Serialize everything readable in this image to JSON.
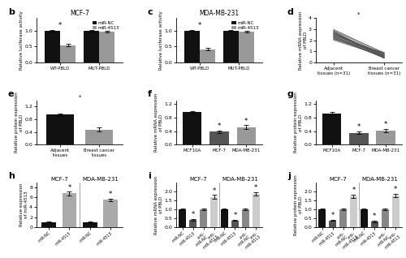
{
  "chart_data": [
    {
      "type": "bar",
      "title": "MCF-7",
      "categories": [
        "WT-PBLD",
        "MUT-PBLD"
      ],
      "series": [
        {
          "name": "miR-NC",
          "color": "#111111",
          "values": [
            1.0,
            1.0
          ],
          "errors": [
            0.03,
            0.03
          ]
        },
        {
          "name": "miR-4513",
          "color": "#999999",
          "values": [
            0.55,
            0.97
          ],
          "errors": [
            0.03,
            0.03
          ]
        }
      ],
      "y_label": "Relative luciferase activity",
      "ylim": [
        0,
        1.4
      ],
      "yticks": [
        {
          "value": 0,
          "label": "0.0"
        },
        0.5,
        {
          "value": 1,
          "label": "1.0"
        }
      ],
      "legend": "upper right",
      "annotations": [
        {
          "text": "b"
        },
        {
          "text": "*",
          "index": 0
        }
      ]
    },
    {
      "type": "bar",
      "title": "MDA-MB-231",
      "categories": [
        "WT-PBLD",
        "MUT-PBLD"
      ],
      "series": [
        {
          "name": "miR-NC",
          "color": "#111111",
          "values": [
            1.0,
            1.0
          ],
          "errors": [
            0.03,
            0.03
          ]
        },
        {
          "name": "miR-4513",
          "color": "#999999",
          "values": [
            0.42,
            0.97
          ],
          "errors": [
            0.03,
            0.03
          ]
        }
      ],
      "y_label": "Relative luciferase activity",
      "ylim": [
        0,
        1.4
      ],
      "yticks": [
        {
          "value": 0,
          "label": "0.0"
        },
        0.5,
        {
          "value": 1,
          "label": "1.0"
        }
      ],
      "legend": "upper right",
      "annotations": [
        {
          "text": "c"
        },
        {
          "text": "*",
          "index": 0
        }
      ]
    },
    {
      "type": "line",
      "categories": [
        "Adjacent\ntissues (n=31)",
        "Breast cancer\ntissues (n=31)"
      ],
      "color": "#555555",
      "series": [
        {
          "values": [
            2.2,
            0.5
          ]
        },
        {
          "values": [
            2.5,
            0.7
          ]
        },
        {
          "values": [
            2.8,
            0.4
          ]
        },
        {
          "values": [
            2.3,
            0.8
          ]
        },
        {
          "values": [
            2.6,
            0.6
          ]
        },
        {
          "values": [
            2.1,
            0.5
          ]
        },
        {
          "values": [
            2.9,
            0.9
          ]
        },
        {
          "values": [
            2.4,
            0.4
          ]
        },
        {
          "values": [
            2.7,
            0.7
          ]
        },
        {
          "values": [
            2.0,
            0.6
          ]
        },
        {
          "values": [
            3.0,
            0.8
          ]
        },
        {
          "values": [
            2.2,
            0.5
          ]
        },
        {
          "values": [
            2.5,
            0.6
          ]
        },
        {
          "values": [
            2.3,
            0.7
          ]
        },
        {
          "values": [
            2.7,
            0.4
          ]
        },
        {
          "values": [
            2.1,
            0.9
          ]
        },
        {
          "values": [
            2.8,
            0.5
          ]
        },
        {
          "values": [
            2.4,
            0.8
          ]
        },
        {
          "values": [
            2.6,
            0.6
          ]
        },
        {
          "values": [
            2.2,
            0.4
          ]
        },
        {
          "values": [
            2.9,
            0.7
          ]
        },
        {
          "values": [
            2.3,
            0.5
          ]
        },
        {
          "values": [
            2.5,
            0.8
          ]
        },
        {
          "values": [
            2.7,
            0.6
          ]
        },
        {
          "values": [
            2.1,
            0.9
          ]
        },
        {
          "values": [
            2.4,
            0.4
          ]
        },
        {
          "values": [
            2.6,
            0.7
          ]
        },
        {
          "values": [
            2.8,
            0.5
          ]
        },
        {
          "values": [
            2.3,
            0.6
          ]
        },
        {
          "values": [
            2.5,
            0.8
          ]
        },
        {
          "values": [
            2.7,
            0.4
          ]
        }
      ],
      "y_label": "Relative mRNA expression\nof PBLD",
      "ylim": [
        0,
        4.0
      ],
      "yticks": [
        0,
        1,
        2,
        3,
        4
      ],
      "annotations": [
        {
          "text": "d"
        },
        {
          "text": "*",
          "indices": [
            0,
            1
          ]
        }
      ]
    },
    {
      "type": "bar",
      "categories": [
        "Adjacent\ntissues",
        "Breast cancer\ntissues"
      ],
      "values": [
        0.95,
        0.48
      ],
      "colors": [
        "#111111",
        "#999999"
      ],
      "errors": [
        0.04,
        0.07
      ],
      "y_label": "Relative protein expression\nof PBLD",
      "ylim": [
        0,
        1.4
      ],
      "yticks": [
        {
          "value": 0,
          "label": "0.0"
        },
        0.4,
        0.8,
        1.2
      ],
      "annotations": [
        {
          "text": "e"
        },
        {
          "text": "*",
          "indices": [
            0,
            1
          ]
        }
      ]
    },
    {
      "type": "bar",
      "categories": [
        "MCF10A",
        "MCF-7",
        "MDA-MB-231"
      ],
      "values": [
        0.95,
        0.38,
        0.52
      ],
      "colors": [
        "#111111",
        "#555555",
        "#999999"
      ],
      "errors": [
        0.03,
        0.04,
        0.05
      ],
      "y_label": "Relative mRNA expression\nof PBLD",
      "ylim": [
        0,
        1.3
      ],
      "yticks": [
        {
          "value": 0,
          "label": "0.0"
        },
        0.4,
        0.8,
        1.2
      ],
      "annotations": [
        {
          "text": "f"
        },
        {
          "text": "*",
          "index": 1
        },
        {
          "text": "*",
          "index": 2
        }
      ]
    },
    {
      "type": "bar",
      "categories": [
        "MCF10A",
        "MCF-7",
        "MDA-MB-231"
      ],
      "values": [
        0.92,
        0.35,
        0.42
      ],
      "colors": [
        "#111111",
        "#555555",
        "#999999"
      ],
      "errors": [
        0.03,
        0.04,
        0.05
      ],
      "y_label": "Relative protein expression\nof PBLD",
      "ylim": [
        0,
        1.3
      ],
      "yticks": [
        {
          "value": 0,
          "label": "0.0"
        },
        0.4,
        0.8,
        1.2
      ],
      "annotations": [
        {
          "text": "g"
        },
        {
          "text": "*",
          "index": 1
        },
        {
          "text": "*",
          "index": 2
        }
      ]
    },
    {
      "type": "bar",
      "categories": [
        "miR-NC",
        "miR-4513",
        "miR-NC",
        "miR-4513"
      ],
      "values": [
        1.0,
        6.8,
        1.0,
        5.5
      ],
      "colors": [
        "#111111",
        "#aaaaaa",
        "#111111",
        "#aaaaaa"
      ],
      "errors": [
        0.08,
        0.35,
        0.08,
        0.3
      ],
      "y_label": "Relative expression\nof miR-4513",
      "ylim": [
        0,
        9
      ],
      "yticks": [
        0,
        2,
        4,
        6,
        8
      ],
      "annotations": [
        {
          "text": "h"
        },
        {
          "text": "MCF-7",
          "indices": [
            0,
            1
          ]
        },
        {
          "text": "MDA-MB-231",
          "indices": [
            2,
            3
          ]
        },
        {
          "text": "*",
          "index": 1
        },
        {
          "text": "*",
          "index": 3
        }
      ]
    },
    {
      "type": "bar",
      "categories": [
        "miR-NC",
        "miR-4513",
        "anti-\nmiR-NC",
        "anti-\nmiR-4513",
        "miR-NC",
        "miR-4513",
        "anti-\nmiR-NC",
        "anti-\nmiR-4513"
      ],
      "values": [
        1.0,
        0.42,
        1.0,
        1.7,
        1.0,
        0.38,
        1.0,
        1.85
      ],
      "colors": [
        "#111111",
        "#555555",
        "#888888",
        "#cccccc",
        "#111111",
        "#555555",
        "#888888",
        "#cccccc"
      ],
      "errors": [
        0.05,
        0.04,
        0.05,
        0.1,
        0.05,
        0.04,
        0.05,
        0.1
      ],
      "y_label": "Relative mRNA expression\nof PBLD",
      "ylim": [
        0,
        2.5
      ],
      "yticks": [
        {
          "value": 0,
          "label": "0.0"
        },
        0.5,
        {
          "value": 1,
          "label": "1.0"
        },
        1.5,
        {
          "value": 2,
          "label": "2.0"
        }
      ],
      "annotations": [
        {
          "text": "i"
        },
        {
          "text": "MCF-7",
          "indices": [
            0,
            1,
            2,
            3
          ]
        },
        {
          "text": "MDA-MB-231",
          "indices": [
            4,
            5,
            6,
            7
          ]
        },
        {
          "text": "*",
          "index": 1
        },
        {
          "text": "*",
          "index": 3
        },
        {
          "text": "*",
          "index": 5
        },
        {
          "text": "*",
          "index": 7
        }
      ]
    },
    {
      "type": "bar",
      "categories": [
        "miR-NC",
        "miR-4513",
        "anti-\nmiR-NC",
        "anti-\nmiR-4513",
        "miR-NC",
        "miR-4513",
        "anti-\nmiR-NC",
        "anti-\nmiR-4513"
      ],
      "values": [
        1.0,
        0.38,
        1.0,
        1.72,
        1.0,
        0.32,
        1.0,
        1.78
      ],
      "colors": [
        "#111111",
        "#555555",
        "#888888",
        "#cccccc",
        "#111111",
        "#555555",
        "#888888",
        "#cccccc"
      ],
      "errors": [
        0.05,
        0.04,
        0.05,
        0.1,
        0.05,
        0.04,
        0.05,
        0.1
      ],
      "y_label": "Relative protein expression\nof PBLD",
      "ylim": [
        0,
        2.5
      ],
      "yticks": [
        {
          "value": 0,
          "label": "0.0"
        },
        0.5,
        {
          "value": 1,
          "label": "1.0"
        },
        1.5,
        {
          "value": 2,
          "label": "2.0"
        }
      ],
      "annotations": [
        {
          "text": "j"
        },
        {
          "text": "MCF-7",
          "indices": [
            0,
            1,
            2,
            3
          ]
        },
        {
          "text": "MDA-MB-231",
          "indices": [
            4,
            5,
            6,
            7
          ]
        },
        {
          "text": "*",
          "index": 1
        },
        {
          "text": "*",
          "index": 3
        },
        {
          "text": "*",
          "index": 5
        },
        {
          "text": "*",
          "index": 7
        }
      ]
    }
  ]
}
